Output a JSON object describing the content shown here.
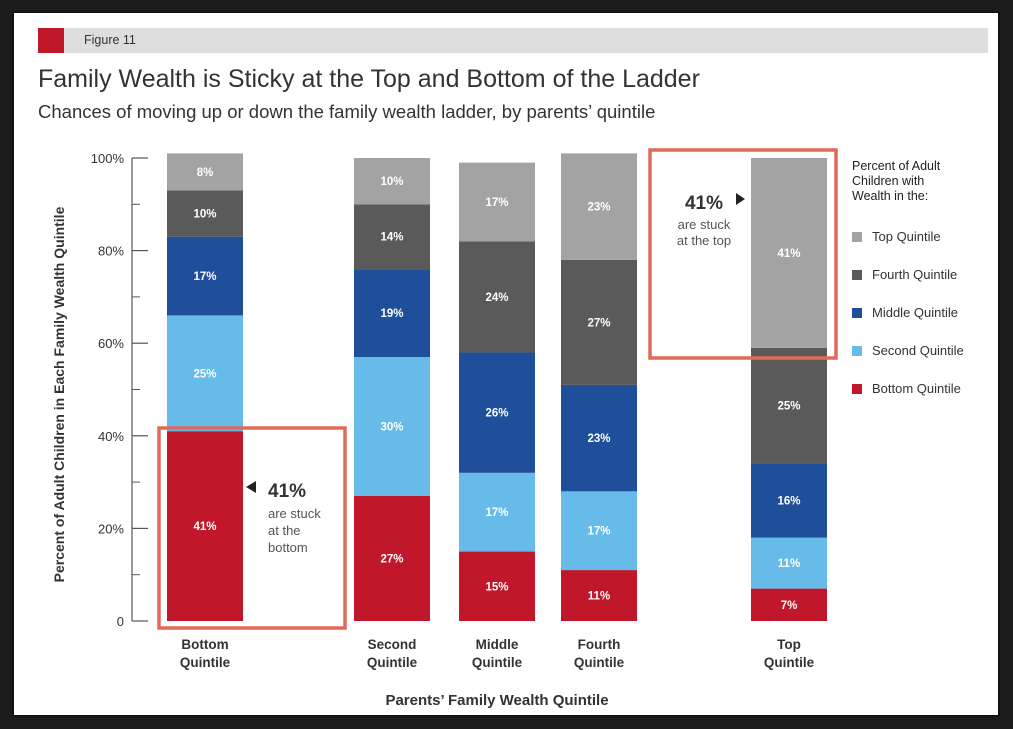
{
  "figure_label": "Figure 11",
  "colors": {
    "accent": "#c0182a",
    "figure_band": "#dedede",
    "callout_border": "#e06a5a",
    "axis": "#555555",
    "text": "#333333"
  },
  "chart_data": {
    "type": "bar",
    "stacked": true,
    "title": "Family Wealth is Sticky at the Top and Bottom of the Ladder",
    "subtitle": "Chances of moving up or down the family wealth ladder, by parents’ quintile",
    "xlabel": "Parents’ Family Wealth Quintile",
    "ylabel": "Percent of Adult Children in Each Family Wealth Quintile",
    "ylim": [
      0,
      100
    ],
    "yticks": [
      0,
      20,
      40,
      60,
      80,
      100
    ],
    "ytick_labels": [
      "0",
      "20%",
      "40%",
      "60%",
      "80%",
      "100%"
    ],
    "categories": [
      [
        "Bottom",
        "Quintile"
      ],
      [
        "Second",
        "Quintile"
      ],
      [
        "Middle",
        "Quintile"
      ],
      [
        "Fourth",
        "Quintile"
      ],
      [
        "Top",
        "Quintile"
      ]
    ],
    "series": [
      {
        "name": "Bottom Quintile",
        "color": "#c0182a",
        "values": [
          41,
          27,
          15,
          11,
          7
        ]
      },
      {
        "name": "Second Quintile",
        "color": "#67bbe8",
        "values": [
          25,
          30,
          17,
          17,
          11
        ]
      },
      {
        "name": "Middle Quintile",
        "color": "#1f4f9a",
        "values": [
          17,
          19,
          26,
          23,
          16
        ]
      },
      {
        "name": "Fourth Quintile",
        "color": "#5a5a5a",
        "values": [
          10,
          14,
          24,
          27,
          25
        ]
      },
      {
        "name": "Top Quintile",
        "color": "#a3a3a3",
        "values": [
          8,
          10,
          17,
          23,
          41
        ]
      }
    ],
    "data_label_suffix": "%",
    "legend": {
      "title": [
        "Percent of Adult",
        "Children with",
        "Wealth in the:"
      ],
      "order": [
        4,
        3,
        2,
        1,
        0
      ],
      "placement": "right"
    },
    "annotations": [
      {
        "value": "41%",
        "text": [
          "are stuck",
          "at the",
          "bottom"
        ],
        "category": 0,
        "series": 0
      },
      {
        "value": "41%",
        "text": [
          "are stuck",
          "at the top"
        ],
        "category": 4,
        "series": 4
      }
    ],
    "grid": false
  }
}
